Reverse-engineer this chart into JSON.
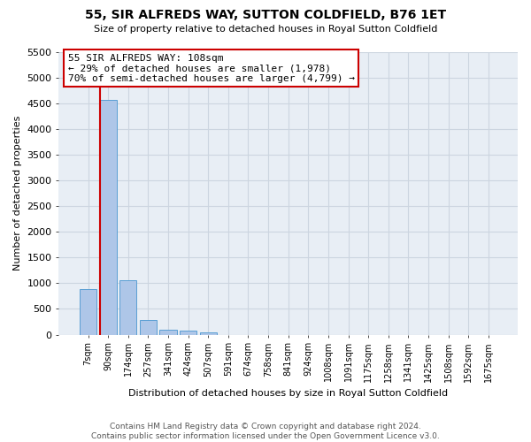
{
  "title": "55, SIR ALFREDS WAY, SUTTON COLDFIELD, B76 1ET",
  "subtitle": "Size of property relative to detached houses in Royal Sutton Coldfield",
  "xlabel": "Distribution of detached houses by size in Royal Sutton Coldfield",
  "ylabel": "Number of detached properties",
  "footer_line1": "Contains HM Land Registry data © Crown copyright and database right 2024.",
  "footer_line2": "Contains public sector information licensed under the Open Government Licence v3.0.",
  "bar_labels": [
    "7sqm",
    "90sqm",
    "174sqm",
    "257sqm",
    "341sqm",
    "424sqm",
    "507sqm",
    "591sqm",
    "674sqm",
    "758sqm",
    "841sqm",
    "924sqm",
    "1008sqm",
    "1091sqm",
    "1175sqm",
    "1258sqm",
    "1341sqm",
    "1425sqm",
    "1508sqm",
    "1592sqm",
    "1675sqm"
  ],
  "bar_values": [
    880,
    4570,
    1060,
    285,
    90,
    75,
    50,
    0,
    0,
    0,
    0,
    0,
    0,
    0,
    0,
    0,
    0,
    0,
    0,
    0,
    0
  ],
  "bar_color": "#aec6e8",
  "bar_edge_color": "#5a9fd4",
  "property_line_color": "#cc0000",
  "annotation_line1": "55 SIR ALFREDS WAY: 108sqm",
  "annotation_line2": "← 29% of detached houses are smaller (1,978)",
  "annotation_line3": "70% of semi-detached houses are larger (4,799) →",
  "annotation_box_edge_color": "#cc0000",
  "ylim": [
    0,
    5500
  ],
  "yticks": [
    0,
    500,
    1000,
    1500,
    2000,
    2500,
    3000,
    3500,
    4000,
    4500,
    5000,
    5500
  ],
  "grid_color": "#ccd5e0",
  "background_color": "#e8eef5"
}
